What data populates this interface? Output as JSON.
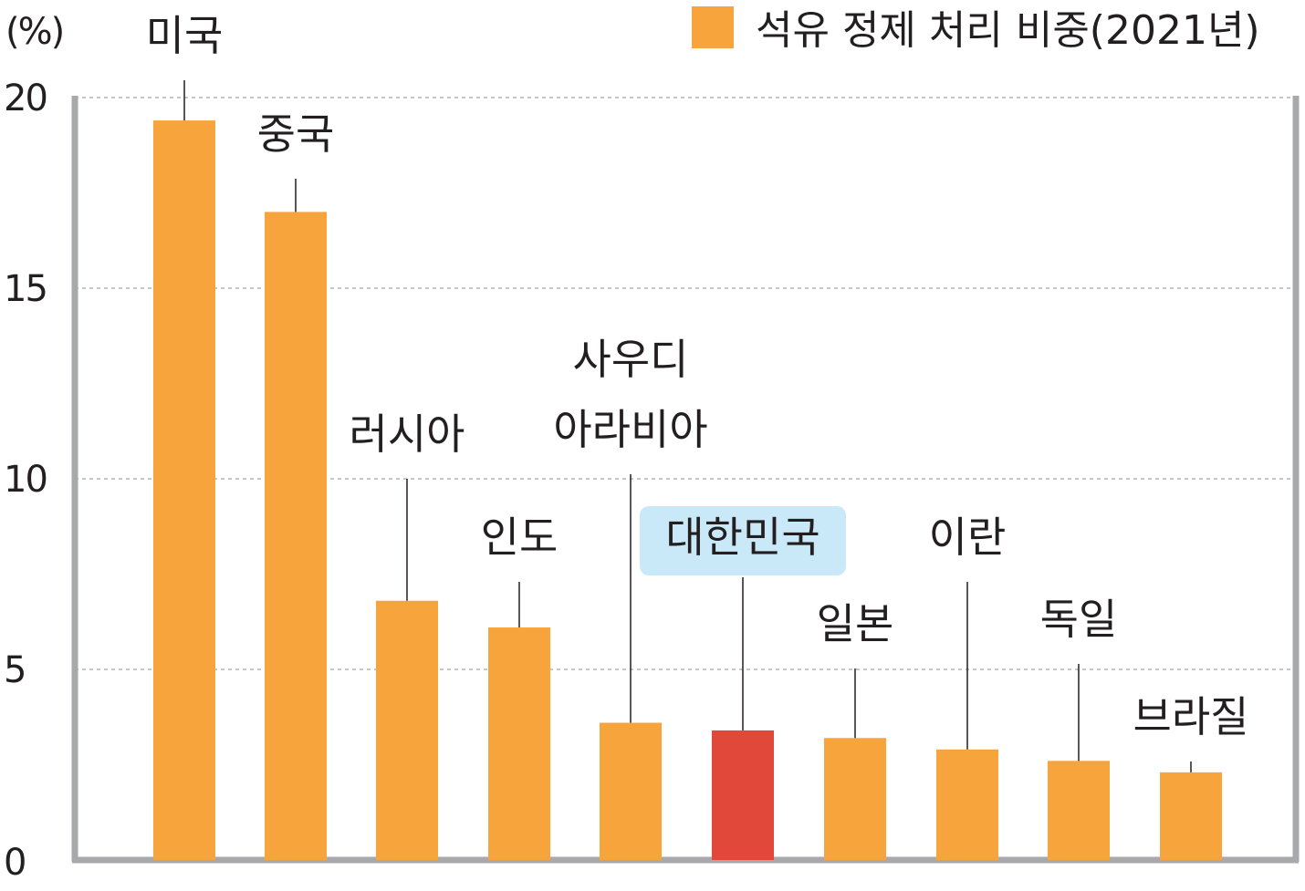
{
  "chart_data": {
    "type": "bar",
    "unit_label": "(%)",
    "legend": "석유 정제 처리 비중(2021년)",
    "categories": [
      "미국",
      "중국",
      "러시아",
      "인도",
      "사우디 아라비아",
      "대한민국",
      "일본",
      "이란",
      "독일",
      "브라질"
    ],
    "category_lines": [
      [
        "미국"
      ],
      [
        "중국"
      ],
      [
        "러시아"
      ],
      [
        "인도"
      ],
      [
        "사우디",
        "아라비아"
      ],
      [
        "대한민국"
      ],
      [
        "일본"
      ],
      [
        "이란"
      ],
      [
        "독일"
      ],
      [
        "브라질"
      ]
    ],
    "values": [
      19.4,
      17.0,
      6.8,
      6.1,
      3.6,
      3.4,
      3.2,
      2.9,
      2.6,
      2.3
    ],
    "highlight": "대한민국",
    "ylim": [
      0,
      20
    ],
    "yticks": [
      "0",
      "5",
      "10",
      "15",
      "20"
    ],
    "grid": true,
    "legend_position": "top-right",
    "colors": {
      "bar": "#F8A43C",
      "highlight_bar": "#E2483A",
      "highlight_label_bg": "#C9E9F8",
      "axis": "#A7A9AC",
      "grid": "#B3B3B3",
      "text": "#231F20"
    }
  }
}
